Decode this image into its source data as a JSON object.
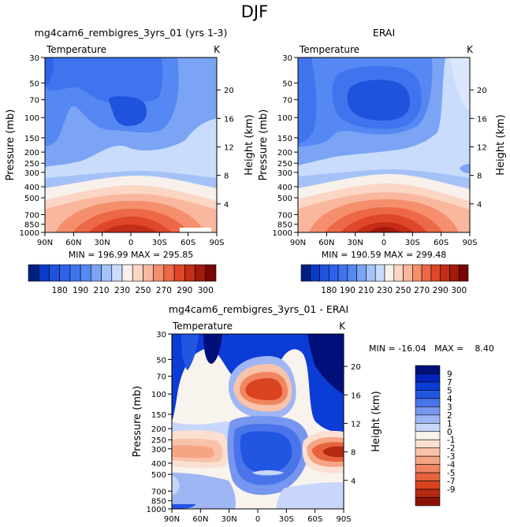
{
  "page_title": "DJF",
  "colors": {
    "model": [
      "#002080",
      "#0a3ac8",
      "#1f52dd",
      "#2f62e8",
      "#3f74ee",
      "#5588f2",
      "#7ba4f5",
      "#a5c2f8",
      "#c9dcfb",
      "#f8f0ea",
      "#fbd6c5",
      "#f9b79e",
      "#f58e6c",
      "#ed6846",
      "#e0462a",
      "#c42d17",
      "#a21a0c",
      "#7a0505"
    ],
    "diff": [
      "#00107a",
      "#0024b8",
      "#0b3cd6",
      "#2255e2",
      "#4a74ea",
      "#7696f0",
      "#9fb6f5",
      "#c7d6fa",
      "#f9f3ee",
      "#fbe0d2",
      "#f9c2aa",
      "#f6a584",
      "#f0855f",
      "#e6633d",
      "#d9431f",
      "#b52812",
      "#8c1006"
    ]
  },
  "chart_data": [
    {
      "id": "model",
      "type": "contour",
      "title": "mg4cam6_rembigres_3yrs_01 (yrs 1-3)",
      "variable": "Temperature",
      "units": "K",
      "ylabel": "Pressure (mb)",
      "y2label": "Height (km)",
      "x_ticks": [
        "90N",
        "60N",
        "30N",
        "0",
        "30S",
        "60S",
        "90S"
      ],
      "x_values": [
        90,
        60,
        30,
        0,
        -30,
        -60,
        -90
      ],
      "p_ticks": [
        30,
        50,
        70,
        100,
        150,
        200,
        250,
        300,
        400,
        500,
        700,
        850,
        1000
      ],
      "z_ticks": [
        20,
        16,
        12,
        8,
        4
      ],
      "stats": "MIN = 196.99   MAX = 295.85",
      "min": 196.99,
      "max": 295.85,
      "colorbar": {
        "orientation": "horizontal",
        "boundaries": [
          170,
          175,
          180,
          185,
          190,
          200,
          210,
          220,
          230,
          240,
          250,
          260,
          270,
          280,
          290,
          295,
          300
        ],
        "labels": [
          "180",
          "190",
          "210",
          "230",
          "250",
          "270",
          "290",
          "300"
        ]
      }
    },
    {
      "id": "obs",
      "type": "contour",
      "title": "ERAI",
      "variable": "Temperature",
      "units": "K",
      "ylabel": "Pressure (mb)",
      "y2label": "Height (km)",
      "x_ticks": [
        "90N",
        "60N",
        "30N",
        "0",
        "30S",
        "60S",
        "90S"
      ],
      "x_values": [
        90,
        60,
        30,
        0,
        -30,
        -60,
        -90
      ],
      "p_ticks": [
        30,
        50,
        70,
        100,
        150,
        200,
        250,
        300,
        400,
        500,
        700,
        850,
        1000
      ],
      "z_ticks": [
        20,
        16,
        12,
        8,
        4
      ],
      "stats": "MIN = 190.59   MAX = 299.48",
      "min": 190.59,
      "max": 299.48,
      "colorbar": {
        "orientation": "horizontal",
        "boundaries": [
          170,
          175,
          180,
          185,
          190,
          200,
          210,
          220,
          230,
          240,
          250,
          260,
          270,
          280,
          290,
          295,
          300
        ],
        "labels": [
          "180",
          "190",
          "210",
          "230",
          "250",
          "270",
          "290",
          "300"
        ]
      }
    },
    {
      "id": "diff",
      "type": "contour",
      "title": "mg4cam6_rembigres_3yrs_01 - ERAI",
      "variable": "Temperature",
      "units": "K",
      "ylabel": "Pressure (mb)",
      "y2label": "Height (km)",
      "x_ticks": [
        "90N",
        "60N",
        "30N",
        "0",
        "30S",
        "60S",
        "90S"
      ],
      "x_values": [
        90,
        60,
        30,
        0,
        -30,
        -60,
        -90
      ],
      "p_ticks": [
        30,
        50,
        70,
        100,
        150,
        200,
        250,
        300,
        400,
        500,
        700,
        850,
        1000
      ],
      "z_ticks": [
        20,
        16,
        12,
        8,
        4
      ],
      "stats": "MIN = -16.04   MAX =    8.40",
      "min": -16.04,
      "max": 8.4,
      "colorbar": {
        "orientation": "vertical",
        "labels": [
          "9",
          "7",
          "5",
          "4",
          "3",
          "2",
          "1",
          "0",
          "-1",
          "-2",
          "-3",
          "-4",
          "-5",
          "-7",
          "-9"
        ]
      }
    }
  ]
}
